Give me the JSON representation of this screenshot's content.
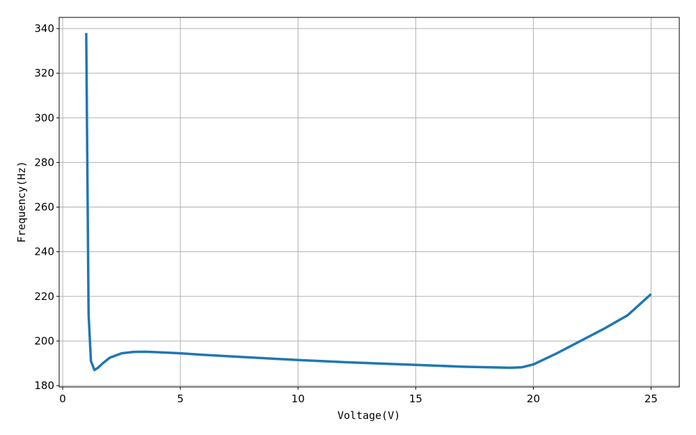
{
  "chart_data": {
    "type": "line",
    "x_label": "Voltage(V)",
    "y_label": "Frequency(Hz)",
    "x": [
      1.0,
      1.1,
      1.2,
      1.35,
      1.5,
      1.7,
      2.0,
      2.5,
      3.0,
      3.5,
      4,
      5,
      6,
      8,
      10,
      12,
      15,
      17,
      19,
      19.5,
      20,
      21,
      22,
      23,
      24,
      25
    ],
    "values": [
      338,
      212,
      191,
      187,
      188,
      190,
      192.5,
      194.5,
      195.1,
      195.2,
      195,
      194.5,
      193.8,
      192.6,
      191.5,
      190.5,
      189.3,
      188.5,
      188,
      188.2,
      189.5,
      194.5,
      200,
      205.5,
      211.5,
      221
    ],
    "color": "#1f77b4",
    "xlim": [
      -0.15,
      26.2
    ],
    "ylim": [
      179.4,
      345
    ],
    "xticks": [
      0,
      5,
      10,
      15,
      20,
      25
    ],
    "yticks": [
      180,
      200,
      220,
      240,
      260,
      280,
      300,
      320,
      340
    ],
    "grid": true
  }
}
